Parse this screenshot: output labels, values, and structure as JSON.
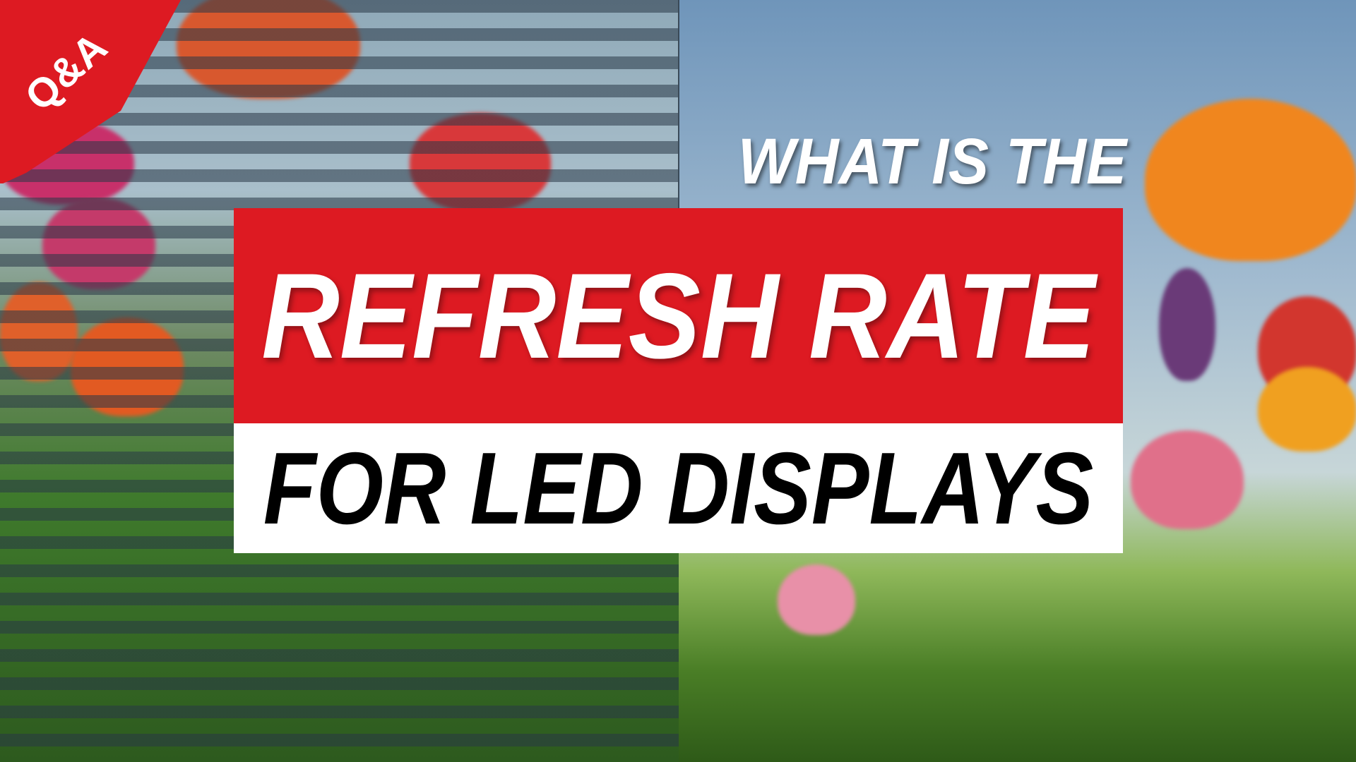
{
  "badge": {
    "label": "Q&A",
    "color": "#dd1a22"
  },
  "title": {
    "line1": "WHAT IS THE",
    "line2": "REFRESH RATE",
    "line3": "FOR LED DISPLAYS"
  },
  "colors": {
    "accent_red": "#dd1a22",
    "white": "#ffffff"
  }
}
